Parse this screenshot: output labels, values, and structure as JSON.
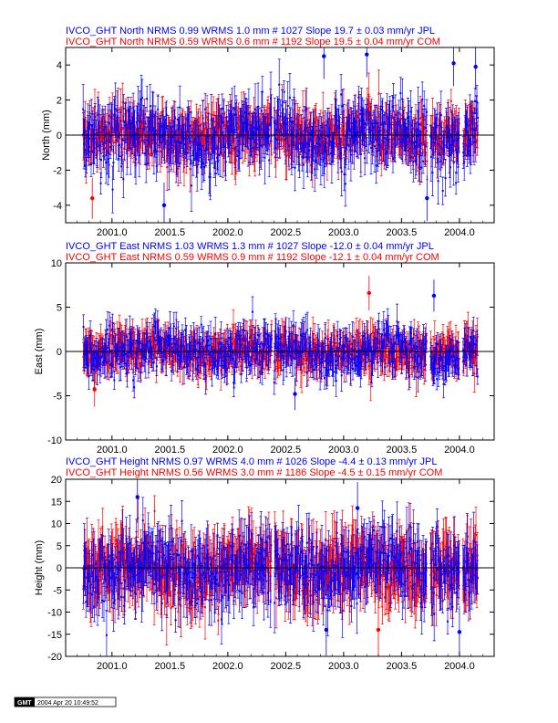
{
  "colors": {
    "jpl": "#0000ff",
    "com": "#ff0000",
    "axis": "#000000"
  },
  "stamp": {
    "logo": "GMT",
    "text": "2004 Apr 20 10:49:52"
  },
  "chart_data": [
    {
      "type": "scatter",
      "title_lines": [
        {
          "text": "IVCO_GHT North NRMS 0.99 WRMS  1.0 mm # 1027 Slope  19.7 ±  0.03 mm/yr JPL",
          "color": "#0000ff"
        },
        {
          "text": "IVCO_GHT North NRMS 0.59 WRMS  0.6 mm # 1192 Slope  19.5 ±  0.04 mm/yr COM",
          "color": "#ff0000"
        }
      ],
      "ylabel": "North (mm)",
      "xlim": [
        2000.6,
        2004.3
      ],
      "ylim": [
        -5,
        5
      ],
      "x_ticks": [
        2001.0,
        2001.5,
        2002.0,
        2002.5,
        2003.0,
        2003.5,
        2004.0
      ],
      "x_tick_labels": [
        "2001.0",
        "2001.5",
        "2002.0",
        "2002.5",
        "2003.0",
        "2003.5",
        "2004.0"
      ],
      "y_ticks": [
        -4,
        -2,
        0,
        2,
        4
      ],
      "y_tick_labels": [
        "-4",
        "-2",
        "0",
        "2",
        "4"
      ],
      "zero_line": 0,
      "series": [
        {
          "name": "JPL",
          "count": 1027,
          "wrms_mm": 1.0,
          "nrms": 0.99,
          "slope_mm_yr": 19.7,
          "slope_sigma": 0.03,
          "color": "#0000ff",
          "typical_error_mm": 1.0
        },
        {
          "name": "COM",
          "count": 1192,
          "wrms_mm": 0.6,
          "nrms": 0.59,
          "slope_mm_yr": 19.5,
          "slope_sigma": 0.04,
          "color": "#ff0000",
          "typical_error_mm": 0.9
        }
      ],
      "time_span": [
        2000.75,
        2004.16
      ],
      "gaps": [
        [
          2002.38,
          2002.4
        ],
        [
          2003.72,
          2003.75
        ],
        [
          2004.0,
          2004.03
        ]
      ],
      "outliers": [
        {
          "x": 2000.83,
          "y": -3.6,
          "series": "COM"
        },
        {
          "x": 2001.45,
          "y": -4.0,
          "series": "JPL"
        },
        {
          "x": 2002.83,
          "y": 4.5,
          "series": "JPL"
        },
        {
          "x": 2003.2,
          "y": 4.6,
          "series": "JPL"
        },
        {
          "x": 2003.72,
          "y": -3.6,
          "series": "JPL"
        },
        {
          "x": 2003.95,
          "y": 4.1,
          "series": "JPL"
        },
        {
          "x": 2004.14,
          "y": 3.9,
          "series": "JPL"
        }
      ]
    },
    {
      "type": "scatter",
      "title_lines": [
        {
          "text": "IVCO_GHT East NRMS 1.03 WRMS  1.3 mm # 1027 Slope  -12.0 ±  0.04 mm/yr JPL",
          "color": "#0000ff"
        },
        {
          "text": "IVCO_GHT East NRMS 0.59 WRMS  0.9 mm # 1192 Slope  -12.1 ±  0.04 mm/yr COM",
          "color": "#ff0000"
        }
      ],
      "ylabel": "East (mm)",
      "xlim": [
        2000.6,
        2004.3
      ],
      "ylim": [
        -10,
        10
      ],
      "x_ticks": [
        2001.0,
        2001.5,
        2002.0,
        2002.5,
        2003.0,
        2003.5,
        2004.0
      ],
      "x_tick_labels": [
        "2001.0",
        "2001.5",
        "2002.0",
        "2002.5",
        "2003.0",
        "2003.5",
        "2004.0"
      ],
      "y_ticks": [
        -10,
        -5,
        0,
        5,
        10
      ],
      "y_tick_labels": [
        "-10",
        "-5",
        "0",
        "5",
        "10"
      ],
      "zero_line": 0,
      "series": [
        {
          "name": "JPL",
          "count": 1027,
          "wrms_mm": 1.3,
          "nrms": 1.03,
          "slope_mm_yr": -12.0,
          "slope_sigma": 0.04,
          "color": "#0000ff",
          "typical_error_mm": 1.4
        },
        {
          "name": "COM",
          "count": 1192,
          "wrms_mm": 0.9,
          "nrms": 0.59,
          "slope_mm_yr": -12.1,
          "slope_sigma": 0.04,
          "color": "#ff0000",
          "typical_error_mm": 1.5
        }
      ],
      "time_span": [
        2000.75,
        2004.16
      ],
      "gaps": [
        [
          2002.38,
          2002.4
        ],
        [
          2003.72,
          2003.75
        ],
        [
          2004.0,
          2004.03
        ]
      ],
      "outliers": [
        {
          "x": 2000.85,
          "y": -4.3,
          "series": "COM"
        },
        {
          "x": 2002.58,
          "y": -4.8,
          "series": "JPL"
        },
        {
          "x": 2003.22,
          "y": 6.6,
          "series": "COM"
        },
        {
          "x": 2003.78,
          "y": 6.3,
          "series": "JPL"
        }
      ]
    },
    {
      "type": "scatter",
      "title_lines": [
        {
          "text": "IVCO_GHT Height NRMS 0.97 WRMS  4.0 mm # 1026 Slope   -4.4 ±  0.13 mm/yr JPL",
          "color": "#0000ff"
        },
        {
          "text": "IVCO_GHT Height NRMS 0.56 WRMS  3.0 mm # 1186 Slope   -4.5 ±  0.15 mm/yr COM",
          "color": "#ff0000"
        }
      ],
      "ylabel": "Height (mm)",
      "xlim": [
        2000.6,
        2004.3
      ],
      "ylim": [
        -20,
        20
      ],
      "x_ticks": [
        2001.0,
        2001.5,
        2002.0,
        2002.5,
        2003.0,
        2003.5,
        2004.0
      ],
      "x_tick_labels": [
        "2001.0",
        "2001.5",
        "2002.0",
        "2002.5",
        "2003.0",
        "2003.5",
        "2004.0"
      ],
      "y_ticks": [
        -20,
        -15,
        -10,
        -5,
        0,
        5,
        10,
        15,
        20
      ],
      "y_tick_labels": [
        "-20",
        "-15",
        "-10",
        "-5",
        "0",
        "5",
        "10",
        "15",
        "20"
      ],
      "zero_line": 0,
      "series": [
        {
          "name": "JPL",
          "count": 1026,
          "wrms_mm": 4.0,
          "nrms": 0.97,
          "slope_mm_yr": -4.4,
          "slope_sigma": 0.13,
          "color": "#0000ff",
          "typical_error_mm": 4.5
        },
        {
          "name": "COM",
          "count": 1186,
          "wrms_mm": 3.0,
          "nrms": 0.56,
          "slope_mm_yr": -4.5,
          "slope_sigma": 0.15,
          "color": "#ff0000",
          "typical_error_mm": 5.0
        }
      ],
      "time_span": [
        2000.75,
        2004.16
      ],
      "gaps": [
        [
          2002.38,
          2002.4
        ],
        [
          2003.72,
          2003.75
        ],
        [
          2004.0,
          2004.03
        ]
      ],
      "outliers": [
        {
          "x": 2002.85,
          "y": -14.0,
          "series": "JPL"
        },
        {
          "x": 2003.3,
          "y": -14.0,
          "series": "COM"
        },
        {
          "x": 2004.0,
          "y": -14.5,
          "series": "JPL"
        },
        {
          "x": 2001.22,
          "y": 16.0,
          "series": "JPL"
        },
        {
          "x": 2003.12,
          "y": 13.5,
          "series": "JPL"
        }
      ]
    }
  ]
}
